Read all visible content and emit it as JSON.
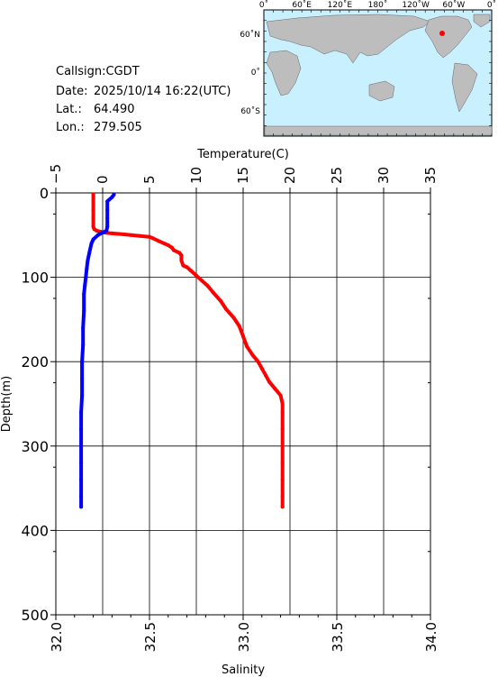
{
  "station": {
    "callsign_label": "Callsign:",
    "callsign": "CGDT",
    "date_label": "Date:",
    "date": "2025/10/14 16:22(UTC)",
    "lat_label": "Lat.:",
    "lat": "64.490",
    "lon_label": "Lon.:",
    "lon": "279.505"
  },
  "map": {
    "top_ticks": [
      "0˚",
      "60˚E",
      "120˚E",
      "180˚",
      "120˚W",
      "60˚W",
      "0˚"
    ],
    "left_ticks": [
      "60˚N",
      "0˚",
      "60˚S"
    ],
    "ocean_color": "#c8f0ff",
    "land_color": "#bdbdbd",
    "marker_color": "#ff0000"
  },
  "chart_data": {
    "type": "line",
    "title": "",
    "y_axis": {
      "label": "Depth(m)",
      "range": [
        0,
        500
      ],
      "ticks": [
        "0",
        "100",
        "200",
        "300",
        "400",
        "500"
      ],
      "inverted": true
    },
    "top_axis": {
      "label": "Temperature(C)",
      "range": [
        -5,
        35
      ],
      "ticks": [
        "−5",
        "0",
        "5",
        "10",
        "15",
        "20",
        "25",
        "30",
        "35"
      ]
    },
    "bottom_axis": {
      "label": "Salinity",
      "range": [
        32.0,
        34.0
      ],
      "ticks": [
        "32.0",
        "32.5",
        "33.0",
        "33.5",
        "34.0"
      ]
    },
    "grid": true,
    "series": [
      {
        "axis": "bottom",
        "color": "#ff0000",
        "points": [
          [
            32.2,
            2
          ],
          [
            32.2,
            10
          ],
          [
            32.2,
            20
          ],
          [
            32.2,
            30
          ],
          [
            32.2,
            40
          ],
          [
            32.205,
            43
          ],
          [
            32.22,
            45
          ],
          [
            32.24,
            46
          ],
          [
            32.26,
            47
          ],
          [
            32.28,
            47.5
          ],
          [
            32.3,
            48
          ],
          [
            32.33,
            48.5
          ],
          [
            32.36,
            49
          ],
          [
            32.4,
            50
          ],
          [
            32.45,
            51
          ],
          [
            32.5,
            52
          ],
          [
            32.52,
            54
          ],
          [
            32.55,
            57
          ],
          [
            32.58,
            60
          ],
          [
            32.6,
            62
          ],
          [
            32.62,
            65
          ],
          [
            32.63,
            68
          ],
          [
            32.66,
            71
          ],
          [
            32.67,
            74
          ],
          [
            32.67,
            80
          ],
          [
            32.68,
            86
          ],
          [
            32.7,
            88
          ],
          [
            32.72,
            92
          ],
          [
            32.75,
            98
          ],
          [
            32.78,
            104
          ],
          [
            32.81,
            110
          ],
          [
            32.84,
            118
          ],
          [
            32.88,
            128
          ],
          [
            32.91,
            138
          ],
          [
            32.95,
            148
          ],
          [
            32.98,
            158
          ],
          [
            33.0,
            170
          ],
          [
            33.02,
            182
          ],
          [
            33.05,
            192
          ],
          [
            33.08,
            200
          ],
          [
            33.1,
            208
          ],
          [
            33.12,
            216
          ],
          [
            33.14,
            224
          ],
          [
            33.17,
            232
          ],
          [
            33.2,
            240
          ],
          [
            33.21,
            250
          ],
          [
            33.21,
            260
          ],
          [
            33.21,
            280
          ],
          [
            33.21,
            300
          ],
          [
            33.21,
            320
          ],
          [
            33.21,
            340
          ],
          [
            33.21,
            360
          ],
          [
            33.21,
            372
          ]
        ]
      },
      {
        "axis": "top",
        "color": "#0000ff",
        "points": [
          [
            1.2,
            2
          ],
          [
            1.0,
            5
          ],
          [
            0.5,
            10
          ],
          [
            0.5,
            20
          ],
          [
            0.5,
            30
          ],
          [
            0.5,
            40
          ],
          [
            0.4,
            45
          ],
          [
            0.0,
            47
          ],
          [
            -0.5,
            50
          ],
          [
            -1.0,
            55
          ],
          [
            -1.2,
            60
          ],
          [
            -1.4,
            70
          ],
          [
            -1.6,
            80
          ],
          [
            -1.7,
            90
          ],
          [
            -1.8,
            100
          ],
          [
            -1.9,
            110
          ],
          [
            -2.0,
            120
          ],
          [
            -2.0,
            140
          ],
          [
            -2.1,
            160
          ],
          [
            -2.1,
            180
          ],
          [
            -2.2,
            200
          ],
          [
            -2.2,
            220
          ],
          [
            -2.2,
            240
          ],
          [
            -2.3,
            260
          ],
          [
            -2.3,
            280
          ],
          [
            -2.3,
            300
          ],
          [
            -2.3,
            320
          ],
          [
            -2.3,
            340
          ],
          [
            -2.3,
            360
          ],
          [
            -2.3,
            372
          ]
        ]
      }
    ]
  }
}
